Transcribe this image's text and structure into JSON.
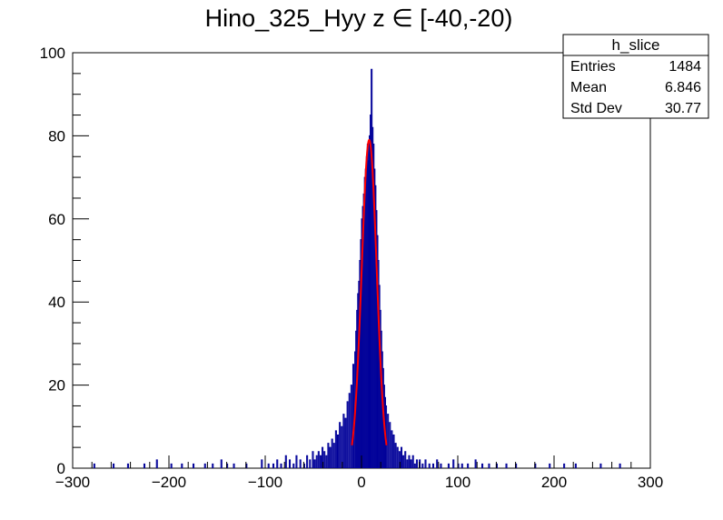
{
  "chart_data": {
    "type": "histogram",
    "title": "Hino_325_Hyy z  ∈ [-40,-20)",
    "xlabel": "",
    "ylabel": "",
    "xlim": [
      -300,
      300
    ],
    "ylim": [
      0,
      100
    ],
    "x_ticks": [
      -300,
      -200,
      -100,
      0,
      100,
      200,
      300
    ],
    "y_ticks": [
      0,
      20,
      40,
      60,
      80,
      100
    ],
    "grid": false,
    "histogram": {
      "color": "#000099",
      "bins": [
        [
          -278,
          1
        ],
        [
          -258,
          1
        ],
        [
          -243,
          1
        ],
        [
          -226,
          1
        ],
        [
          -213,
          2
        ],
        [
          -198,
          1
        ],
        [
          -187,
          1
        ],
        [
          -175,
          1
        ],
        [
          -163,
          1
        ],
        [
          -155,
          1
        ],
        [
          -146,
          2
        ],
        [
          -140,
          1
        ],
        [
          -133,
          1
        ],
        [
          -120,
          1
        ],
        [
          -104,
          2
        ],
        [
          -97,
          1
        ],
        [
          -92,
          1
        ],
        [
          -88,
          2
        ],
        [
          -84,
          1
        ],
        [
          -79,
          3
        ],
        [
          -75,
          2
        ],
        [
          -71,
          1
        ],
        [
          -68,
          3
        ],
        [
          -64,
          2
        ],
        [
          -60,
          1
        ],
        [
          -57,
          3
        ],
        [
          -54,
          2
        ],
        [
          -51,
          4
        ],
        [
          -49,
          2
        ],
        [
          -47,
          3
        ],
        [
          -45,
          4
        ],
        [
          -43,
          3
        ],
        [
          -41,
          5
        ],
        [
          -39,
          4
        ],
        [
          -37,
          3
        ],
        [
          -35,
          6
        ],
        [
          -33,
          5
        ],
        [
          -31,
          7
        ],
        [
          -29,
          6
        ],
        [
          -27,
          9
        ],
        [
          -25,
          8
        ],
        [
          -23,
          11
        ],
        [
          -21,
          10
        ],
        [
          -19,
          13
        ],
        [
          -17,
          12
        ],
        [
          -15,
          16
        ],
        [
          -13,
          18
        ],
        [
          -11,
          20
        ],
        [
          -9,
          25
        ],
        [
          -7,
          28
        ],
        [
          -6,
          33
        ],
        [
          -5,
          38
        ],
        [
          -4,
          42
        ],
        [
          -3,
          45
        ],
        [
          -2,
          50
        ],
        [
          -1,
          55
        ],
        [
          0,
          60
        ],
        [
          1,
          63
        ],
        [
          2,
          66
        ],
        [
          3,
          70
        ],
        [
          4,
          72
        ],
        [
          5,
          75
        ],
        [
          6,
          78
        ],
        [
          7,
          74
        ],
        [
          8,
          80
        ],
        [
          9,
          85
        ],
        [
          10,
          96
        ],
        [
          11,
          82
        ],
        [
          12,
          78
        ],
        [
          13,
          72
        ],
        [
          14,
          68
        ],
        [
          15,
          62
        ],
        [
          16,
          56
        ],
        [
          17,
          50
        ],
        [
          18,
          44
        ],
        [
          19,
          38
        ],
        [
          20,
          33
        ],
        [
          21,
          28
        ],
        [
          22,
          24
        ],
        [
          23,
          20
        ],
        [
          24,
          17
        ],
        [
          25,
          15
        ],
        [
          27,
          13
        ],
        [
          29,
          11
        ],
        [
          31,
          9
        ],
        [
          33,
          8
        ],
        [
          35,
          6
        ],
        [
          37,
          5
        ],
        [
          39,
          4
        ],
        [
          41,
          5
        ],
        [
          43,
          3
        ],
        [
          45,
          4
        ],
        [
          47,
          2
        ],
        [
          49,
          3
        ],
        [
          51,
          2
        ],
        [
          53,
          3
        ],
        [
          55,
          1
        ],
        [
          57,
          2
        ],
        [
          60,
          2
        ],
        [
          63,
          1
        ],
        [
          66,
          2
        ],
        [
          70,
          1
        ],
        [
          74,
          1
        ],
        [
          78,
          2
        ],
        [
          82,
          1
        ],
        [
          90,
          1
        ],
        [
          95,
          2
        ],
        [
          100,
          1
        ],
        [
          104,
          1
        ],
        [
          110,
          1
        ],
        [
          118,
          2
        ],
        [
          125,
          1
        ],
        [
          132,
          1
        ],
        [
          140,
          1
        ],
        [
          150,
          1
        ],
        [
          160,
          1
        ],
        [
          180,
          1
        ],
        [
          195,
          1
        ],
        [
          210,
          1
        ],
        [
          222,
          1
        ],
        [
          248,
          1
        ],
        [
          268,
          1
        ]
      ]
    },
    "fit": {
      "color": "#ff0000",
      "function": "gaus",
      "x_range": [
        -10,
        26
      ],
      "constant": 79,
      "mean": 8,
      "sigma": 7.8
    },
    "stats_box": {
      "name": "h_slice",
      "rows": [
        {
          "label": "Entries",
          "value": "1484"
        },
        {
          "label": "Mean",
          "value": "6.846"
        },
        {
          "label": "Std Dev",
          "value": "30.77"
        }
      ]
    }
  }
}
